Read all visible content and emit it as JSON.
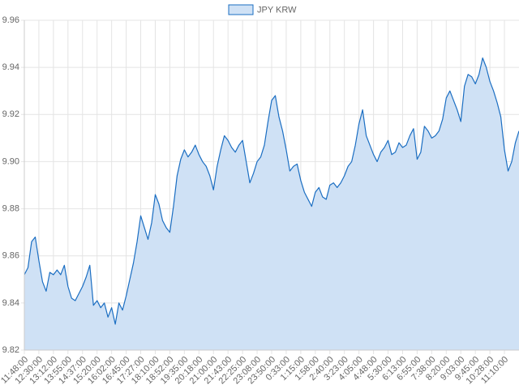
{
  "chart_data": {
    "type": "area",
    "categories": [
      "11:48:00",
      null,
      null,
      null,
      "12:30:00",
      null,
      null,
      null,
      "13:12:00",
      null,
      null,
      null,
      "13:55:00",
      null,
      null,
      null,
      "14:37:00",
      null,
      null,
      null,
      "15:20:00",
      null,
      null,
      null,
      "16:02:00",
      null,
      null,
      null,
      "16:45:00",
      null,
      null,
      null,
      "17:27:00",
      null,
      null,
      null,
      "18:10:00",
      null,
      null,
      null,
      "18:52:00",
      null,
      null,
      null,
      "19:35:00",
      null,
      null,
      null,
      "20:18:00",
      null,
      null,
      null,
      "21:00:00",
      null,
      null,
      null,
      "21:43:00",
      null,
      null,
      null,
      "22:25:00",
      null,
      null,
      null,
      "23:08:00",
      null,
      null,
      null,
      "23:50:00",
      null,
      null,
      null,
      "0:33:00",
      null,
      null,
      null,
      "1:15:00",
      null,
      null,
      null,
      "1:58:00",
      null,
      null,
      null,
      "2:40:00",
      null,
      null,
      null,
      "3:23:00",
      null,
      null,
      null,
      "4:05:00",
      null,
      null,
      null,
      "4:48:00",
      null,
      null,
      null,
      "5:30:00",
      null,
      null,
      null,
      "6:13:00",
      null,
      null,
      null,
      "6:55:00",
      null,
      null,
      null,
      "7:38:00",
      null,
      null,
      null,
      "8:20:00",
      null,
      null,
      null,
      "9:03:00",
      null,
      null,
      null,
      "9:45:00",
      null,
      null,
      null,
      "10:28:00",
      null,
      null,
      null,
      "11:10:00",
      null,
      null,
      null,
      null
    ],
    "series": [
      {
        "name": "JPY KRW",
        "color": "#1b6ec2",
        "fill": "#cfe1f5",
        "values": [
          9.852,
          9.855,
          9.866,
          9.868,
          9.858,
          9.849,
          9.845,
          9.853,
          9.852,
          9.854,
          9.852,
          9.856,
          9.847,
          9.842,
          9.841,
          9.844,
          9.847,
          9.851,
          9.856,
          9.839,
          9.841,
          9.838,
          9.84,
          9.834,
          9.838,
          9.831,
          9.84,
          9.837,
          9.843,
          9.85,
          9.857,
          9.866,
          9.877,
          9.872,
          9.867,
          9.874,
          9.886,
          9.882,
          9.875,
          9.872,
          9.87,
          9.881,
          9.894,
          9.901,
          9.905,
          9.902,
          9.904,
          9.907,
          9.903,
          9.9,
          9.898,
          9.894,
          9.888,
          9.898,
          9.905,
          9.911,
          9.909,
          9.906,
          9.904,
          9.907,
          9.909,
          9.9,
          9.891,
          9.895,
          9.9,
          9.902,
          9.907,
          9.917,
          9.926,
          9.928,
          9.919,
          9.913,
          9.905,
          9.896,
          9.898,
          9.899,
          9.892,
          9.887,
          9.884,
          9.881,
          9.887,
          9.889,
          9.885,
          9.884,
          9.89,
          9.891,
          9.889,
          9.891,
          9.894,
          9.898,
          9.9,
          9.907,
          9.916,
          9.922,
          9.911,
          9.907,
          9.903,
          9.9,
          9.904,
          9.906,
          9.909,
          9.903,
          9.904,
          9.908,
          9.906,
          9.907,
          9.911,
          9.914,
          9.901,
          9.904,
          9.915,
          9.913,
          9.91,
          9.911,
          9.913,
          9.918,
          9.927,
          9.93,
          9.926,
          9.922,
          9.917,
          9.932,
          9.937,
          9.936,
          9.933,
          9.937,
          9.944,
          9.94,
          9.934,
          9.93,
          9.925,
          9.919,
          9.905,
          9.896,
          9.9,
          9.908,
          9.913
        ]
      }
    ],
    "ylim": [
      9.82,
      9.96
    ],
    "yticks": [
      9.82,
      9.84,
      9.86,
      9.88,
      {
        "value": 9.9,
        "label": "9.90"
      },
      9.92,
      9.94,
      9.96
    ],
    "grid": true,
    "legend": "top"
  }
}
